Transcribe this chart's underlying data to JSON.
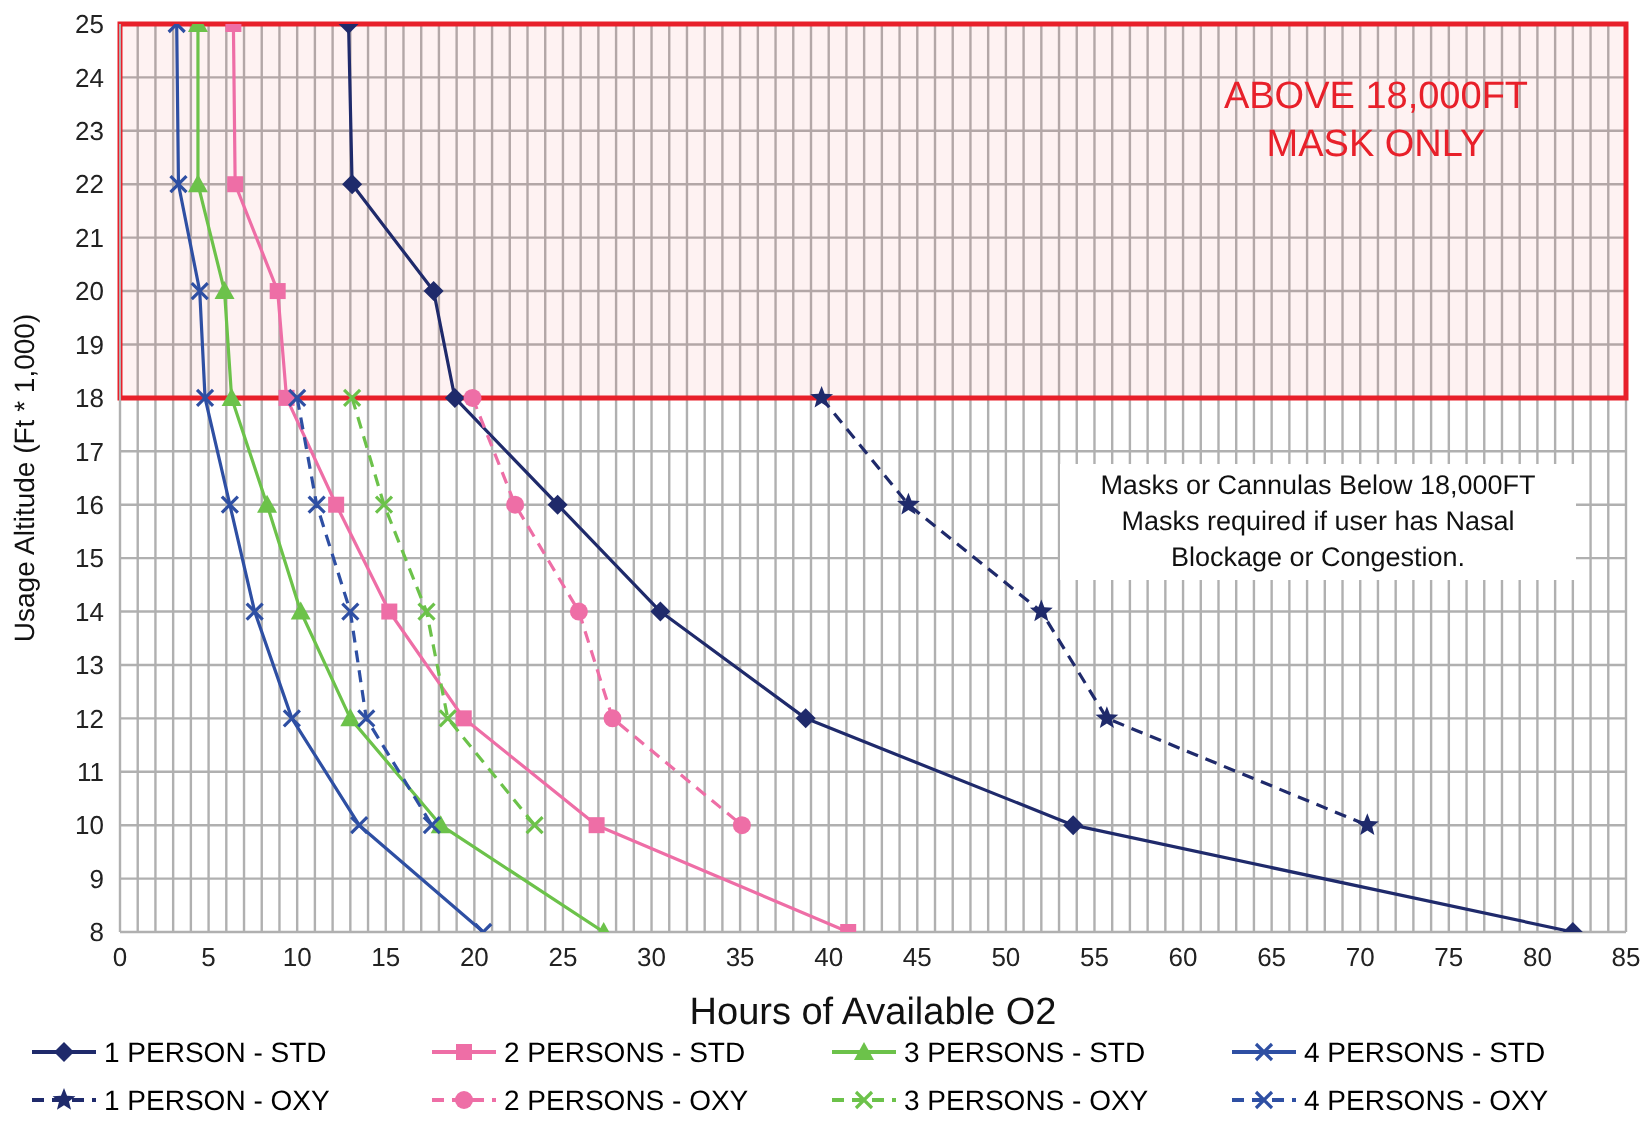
{
  "chart_data": {
    "type": "line",
    "xlabel": "Hours of Available O2",
    "ylabel": "Usage Altitude (Ft * 1,000)",
    "xlim": [
      0,
      85
    ],
    "ylim": [
      8,
      25
    ],
    "xticks": [
      0,
      {
        "value": 1,
        "label": null
      },
      {
        "value": 2,
        "label": null
      },
      {
        "value": 3,
        "label": null
      },
      {
        "value": 4,
        "label": null
      },
      5,
      {
        "value": 6,
        "label": null
      },
      {
        "value": 7,
        "label": null
      },
      {
        "value": 8,
        "label": null
      },
      {
        "value": 9,
        "label": null
      },
      10,
      {
        "value": 11,
        "label": null
      },
      {
        "value": 12,
        "label": null
      },
      {
        "value": 13,
        "label": null
      },
      {
        "value": 14,
        "label": null
      },
      15,
      {
        "value": 16,
        "label": null
      },
      {
        "value": 17,
        "label": null
      },
      {
        "value": 18,
        "label": null
      },
      {
        "value": 19,
        "label": null
      },
      20,
      {
        "value": 21,
        "label": null
      },
      {
        "value": 22,
        "label": null
      },
      {
        "value": 23,
        "label": null
      },
      {
        "value": 24,
        "label": null
      },
      25,
      {
        "value": 26,
        "label": null
      },
      {
        "value": 27,
        "label": null
      },
      {
        "value": 28,
        "label": null
      },
      {
        "value": 29,
        "label": null
      },
      30,
      {
        "value": 31,
        "label": null
      },
      {
        "value": 32,
        "label": null
      },
      {
        "value": 33,
        "label": null
      },
      {
        "value": 34,
        "label": null
      },
      35,
      {
        "value": 36,
        "label": null
      },
      {
        "value": 37,
        "label": null
      },
      {
        "value": 38,
        "label": null
      },
      {
        "value": 39,
        "label": null
      },
      40,
      {
        "value": 41,
        "label": null
      },
      {
        "value": 42,
        "label": null
      },
      {
        "value": 43,
        "label": null
      },
      {
        "value": 44,
        "label": null
      },
      45,
      {
        "value": 46,
        "label": null
      },
      {
        "value": 47,
        "label": null
      },
      {
        "value": 48,
        "label": null
      },
      {
        "value": 49,
        "label": null
      },
      50,
      {
        "value": 51,
        "label": null
      },
      {
        "value": 52,
        "label": null
      },
      {
        "value": 53,
        "label": null
      },
      {
        "value": 54,
        "label": null
      },
      55,
      {
        "value": 56,
        "label": null
      },
      {
        "value": 57,
        "label": null
      },
      {
        "value": 58,
        "label": null
      },
      {
        "value": 59,
        "label": null
      },
      60,
      {
        "value": 61,
        "label": null
      },
      {
        "value": 62,
        "label": null
      },
      {
        "value": 63,
        "label": null
      },
      {
        "value": 64,
        "label": null
      },
      65,
      {
        "value": 66,
        "label": null
      },
      {
        "value": 67,
        "label": null
      },
      {
        "value": 68,
        "label": null
      },
      {
        "value": 69,
        "label": null
      },
      70,
      {
        "value": 71,
        "label": null
      },
      {
        "value": 72,
        "label": null
      },
      {
        "value": 73,
        "label": null
      },
      {
        "value": 74,
        "label": null
      },
      75,
      {
        "value": 76,
        "label": null
      },
      {
        "value": 77,
        "label": null
      },
      {
        "value": 78,
        "label": null
      },
      {
        "value": 79,
        "label": null
      },
      80,
      {
        "value": 81,
        "label": null
      },
      {
        "value": 82,
        "label": null
      },
      {
        "value": 83,
        "label": null
      },
      {
        "value": 84,
        "label": null
      },
      85
    ],
    "yticks": [
      8,
      9,
      10,
      11,
      12,
      13,
      14,
      15,
      16,
      17,
      18,
      19,
      20,
      21,
      22,
      23,
      24,
      25
    ],
    "grid": true,
    "legend": "bottom",
    "series": [
      {
        "name": "1 PERSON - STD",
        "color": "#1f2a6b",
        "marker": "diamond",
        "line_style": "solid",
        "x": [
          12.9,
          13.1,
          17.7,
          18.9,
          24.7,
          30.5,
          38.7,
          53.8,
          82.0
        ],
        "values": [
          25,
          22,
          20,
          18,
          16,
          14,
          12,
          10,
          8
        ]
      },
      {
        "name": "2 PERSONS - STD",
        "color": "#ee6ea6",
        "marker": "square",
        "line_style": "solid",
        "x": [
          6.4,
          6.5,
          8.9,
          9.4,
          12.2,
          15.2,
          19.4,
          26.9,
          41.1
        ],
        "values": [
          25,
          22,
          20,
          18,
          16,
          14,
          12,
          10,
          8
        ]
      },
      {
        "name": "3 PERSONS - STD",
        "color": "#6cc24a",
        "marker": "triangle",
        "line_style": "solid",
        "x": [
          4.4,
          4.4,
          5.9,
          6.3,
          8.3,
          10.2,
          13.0,
          18.1,
          27.3
        ],
        "values": [
          25,
          22,
          20,
          18,
          16,
          14,
          12,
          10,
          8
        ]
      },
      {
        "name": "4 PERSONS - STD",
        "color": "#2e4fa3",
        "marker": "cross",
        "line_style": "solid",
        "x": [
          3.2,
          3.3,
          4.5,
          4.8,
          6.2,
          7.6,
          9.7,
          13.5,
          20.5
        ],
        "values": [
          25,
          22,
          20,
          18,
          16,
          14,
          12,
          10,
          8
        ]
      },
      {
        "name": "1 PERSON - OXY",
        "color": "#1f2a6b",
        "marker": "star",
        "line_style": "dashed",
        "x": [
          39.6,
          44.5,
          52.0,
          55.7,
          70.4
        ],
        "values": [
          18,
          16,
          14,
          12,
          10
        ]
      },
      {
        "name": "2 PERSONS - OXY",
        "color": "#ee6ea6",
        "marker": "circle",
        "line_style": "dashed",
        "x": [
          19.9,
          22.3,
          25.9,
          27.8,
          35.1
        ],
        "values": [
          18,
          16,
          14,
          12,
          10
        ]
      },
      {
        "name": "3 PERSONS - OXY",
        "color": "#6cc24a",
        "marker": "cross",
        "line_style": "dashed",
        "x": [
          13.1,
          14.9,
          17.3,
          18.5,
          23.4
        ],
        "values": [
          18,
          16,
          14,
          12,
          10
        ]
      },
      {
        "name": "4 PERSONS - OXY",
        "color": "#2e4fa3",
        "marker": "cross",
        "line_style": "dashed",
        "x": [
          10.0,
          11.1,
          13.0,
          13.9,
          17.6
        ],
        "values": [
          18,
          16,
          14,
          12,
          10
        ]
      }
    ],
    "bands": [
      {
        "axis": "y",
        "from": 18,
        "to": 25,
        "label": "ABOVE 18,000FT MASK ONLY",
        "color": "#e8202a"
      }
    ],
    "annotations": [
      "Masks or Cannulas Below 18,000FT Masks required if user has Nasal Blockage or Congestion."
    ]
  }
}
